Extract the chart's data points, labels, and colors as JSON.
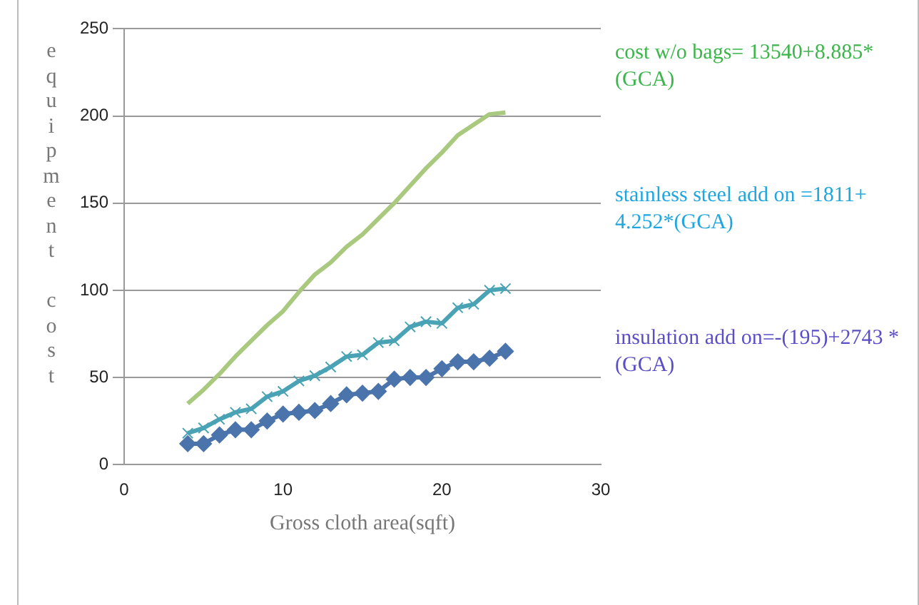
{
  "chart_data": {
    "type": "line",
    "xlabel": "Gross cloth area(sqft)",
    "ylabel": "equipment cost",
    "x": [
      4,
      5,
      6,
      7,
      8,
      9,
      10,
      11,
      12,
      13,
      14,
      15,
      16,
      17,
      18,
      19,
      20,
      21,
      22,
      23,
      24
    ],
    "xlim": [
      0,
      30
    ],
    "xticks": [
      0,
      10,
      20,
      30
    ],
    "ylim": [
      0,
      250
    ],
    "yticks": [
      0,
      50,
      100,
      150,
      200,
      250
    ],
    "grid": "y",
    "legend": false,
    "series": [
      {
        "color": "#a9c97f",
        "marker": "none",
        "values": [
          35,
          43,
          52,
          62,
          71,
          80,
          88,
          99,
          109,
          116,
          125,
          132,
          141,
          150,
          160,
          170,
          179,
          189,
          195,
          201,
          202
        ]
      },
      {
        "color": "#4aa3b5",
        "marker": "cross",
        "values": [
          18,
          21,
          26,
          30,
          32,
          39,
          42,
          48,
          51,
          56,
          62,
          63,
          70,
          71,
          79,
          82,
          81,
          90,
          92,
          100,
          101
        ]
      },
      {
        "color": "#4a74ab",
        "marker": "diamond",
        "values": [
          12,
          12,
          17,
          20,
          20,
          25,
          29,
          30,
          31,
          35,
          40,
          41,
          42,
          49,
          50,
          50,
          55,
          59,
          59,
          61,
          65
        ]
      }
    ],
    "annotations": [
      "cost w/o bags= 13540+8.885*(GCA)",
      "stainless steel add on =1811+ 4.252*(GCA)",
      "insulation add on=-(195)+2743 *(GCA)"
    ]
  }
}
